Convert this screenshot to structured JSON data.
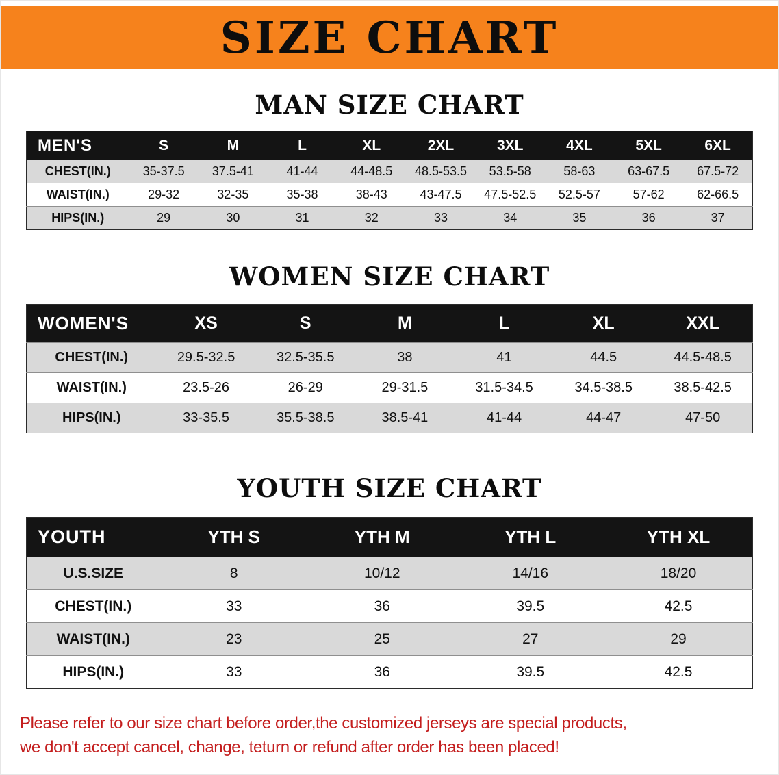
{
  "banner": {
    "title": "SIZE CHART",
    "bg_color": "#F6821C"
  },
  "sections": [
    {
      "title": "MAN SIZE CHART",
      "table": {
        "header": [
          "MEN'S",
          "S",
          "M",
          "L",
          "XL",
          "2XL",
          "3XL",
          "4XL",
          "5XL",
          "6XL"
        ],
        "rows": [
          [
            "CHEST(IN.)",
            "35-37.5",
            "37.5-41",
            "41-44",
            "44-48.5",
            "48.5-53.5",
            "53.5-58",
            "58-63",
            "63-67.5",
            "67.5-72"
          ],
          [
            "WAIST(IN.)",
            "29-32",
            "32-35",
            "35-38",
            "38-43",
            "43-47.5",
            "47.5-52.5",
            "52.5-57",
            "57-62",
            "62-66.5"
          ],
          [
            "HIPS(IN.)",
            "29",
            "30",
            "31",
            "32",
            "33",
            "34",
            "35",
            "36",
            "37"
          ]
        ]
      }
    },
    {
      "title": "WOMEN SIZE CHART",
      "table": {
        "header": [
          "WOMEN'S",
          "XS",
          "S",
          "M",
          "L",
          "XL",
          "XXL"
        ],
        "rows": [
          [
            "CHEST(IN.)",
            "29.5-32.5",
            "32.5-35.5",
            "38",
            "41",
            "44.5",
            "44.5-48.5"
          ],
          [
            "WAIST(IN.)",
            "23.5-26",
            "26-29",
            "29-31.5",
            "31.5-34.5",
            "34.5-38.5",
            "38.5-42.5"
          ],
          [
            "HIPS(IN.)",
            "33-35.5",
            "35.5-38.5",
            "38.5-41",
            "41-44",
            "44-47",
            "47-50"
          ]
        ]
      }
    },
    {
      "title": "YOUTH SIZE CHART",
      "table": {
        "header": [
          "YOUTH",
          "YTH S",
          "YTH M",
          "YTH L",
          "YTH XL"
        ],
        "rows": [
          [
            "U.S.SIZE",
            "8",
            "10/12",
            "14/16",
            "18/20"
          ],
          [
            "CHEST(IN.)",
            "33",
            "36",
            "39.5",
            "42.5"
          ],
          [
            "WAIST(IN.)",
            "23",
            "25",
            "27",
            "29"
          ],
          [
            "HIPS(IN.)",
            "33",
            "36",
            "39.5",
            "42.5"
          ]
        ]
      }
    }
  ],
  "disclaimer": {
    "line1": "Please refer to our size chart before order,the customized jerseys are special products,",
    "line2": "we don't accept cancel, change, teturn or refund after order has been placed!",
    "color": "#c41e1e"
  }
}
